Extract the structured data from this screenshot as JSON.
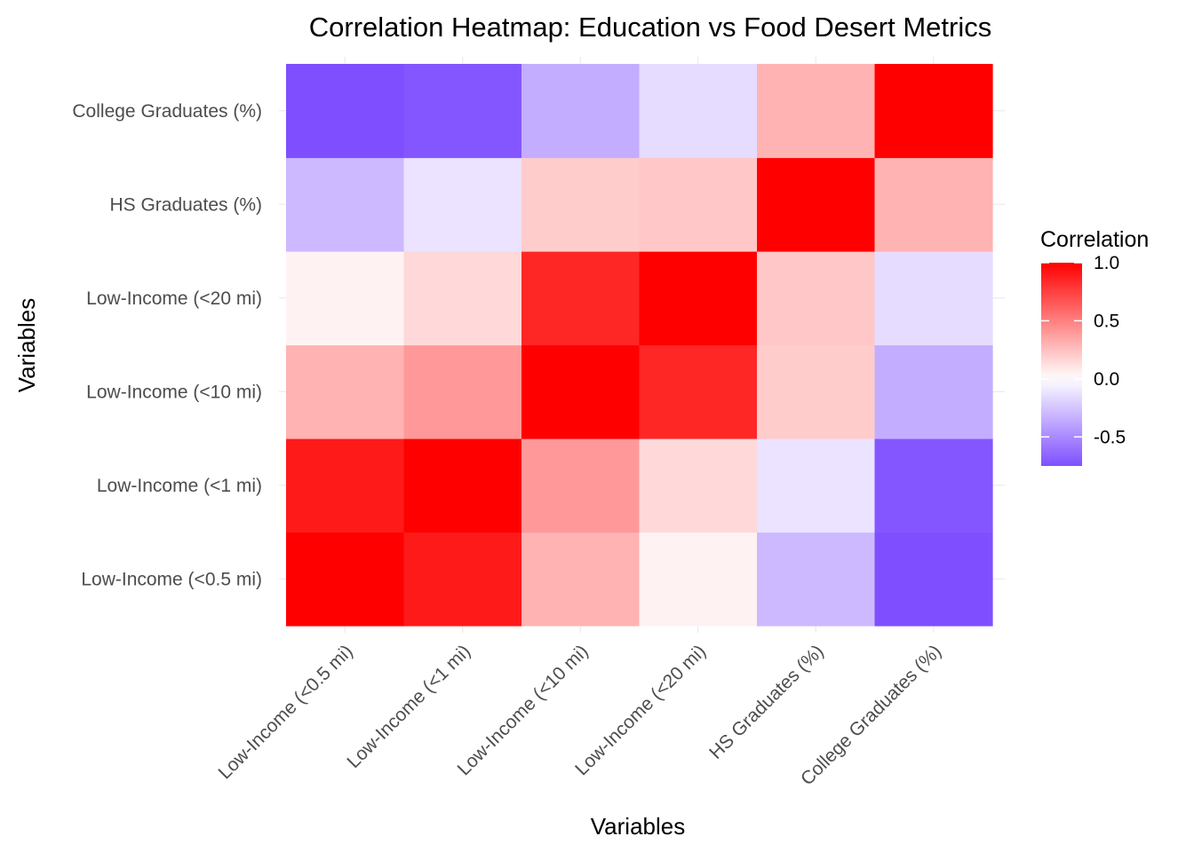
{
  "chart_data": {
    "type": "heatmap",
    "title": "Correlation Heatmap: Education vs Food Desert Metrics",
    "xlabel": "Variables",
    "ylabel": "Variables",
    "x_categories": [
      "Low-Income (<0.5 mi)",
      "Low-Income (<1 mi)",
      "Low-Income (<10 mi)",
      "Low-Income (<20 mi)",
      "HS Graduates (%)",
      "College Graduates (%)"
    ],
    "y_categories": [
      "Low-Income (<0.5 mi)",
      "Low-Income (<1 mi)",
      "Low-Income (<10 mi)",
      "Low-Income (<20 mi)",
      "HS Graduates (%)",
      "College Graduates (%)"
    ],
    "values": [
      [
        1.0,
        0.9,
        0.3,
        0.05,
        -0.3,
        -0.75
      ],
      [
        0.9,
        1.0,
        0.4,
        0.15,
        -0.12,
        -0.72
      ],
      [
        0.3,
        0.4,
        1.0,
        0.85,
        0.2,
        -0.35
      ],
      [
        0.05,
        0.15,
        0.85,
        1.0,
        0.22,
        -0.15
      ],
      [
        -0.3,
        -0.12,
        0.2,
        0.22,
        1.0,
        0.3
      ],
      [
        -0.75,
        -0.72,
        -0.35,
        -0.15,
        0.3,
        1.0
      ]
    ],
    "legend": {
      "title": "Correlation",
      "position": "right",
      "range": [
        -0.75,
        1.0
      ],
      "ticks": [
        1.0,
        0.5,
        0.0,
        -0.5
      ],
      "tick_labels": [
        "1.0",
        "0.5",
        "0.0",
        "-0.5"
      ]
    },
    "colors": {
      "low": "#7F4FFF",
      "mid": "#FFFFFF",
      "high": "#FF0000"
    },
    "grid": true
  }
}
